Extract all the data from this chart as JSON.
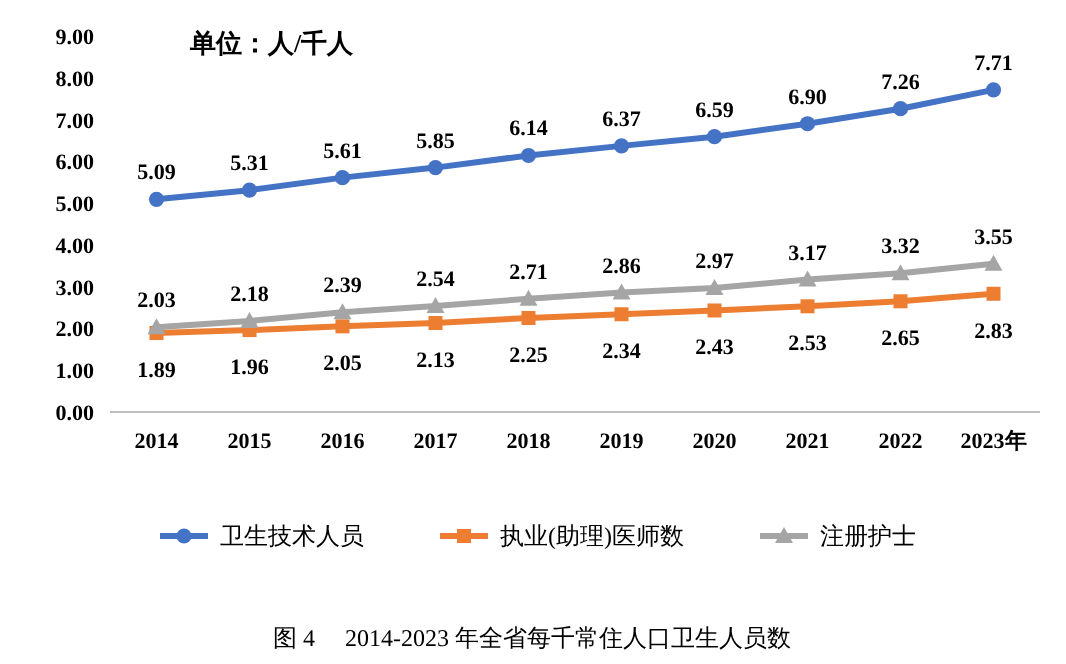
{
  "chart_data": {
    "type": "line",
    "categories": [
      "2014",
      "2015",
      "2016",
      "2017",
      "2018",
      "2019",
      "2020",
      "2021",
      "2022",
      "2023年"
    ],
    "series": [
      {
        "name": "卫生技术人员",
        "color": "#4472c4",
        "marker": "circle",
        "values": [
          5.09,
          5.31,
          5.61,
          5.85,
          6.14,
          6.37,
          6.59,
          6.9,
          7.26,
          7.71
        ],
        "value_labels": [
          "5.09",
          "5.31",
          "5.61",
          "5.85",
          "6.14",
          "6.37",
          "6.59",
          "6.90",
          "7.26",
          "7.71"
        ]
      },
      {
        "name": "执业(助理)医师数",
        "color": "#ed7d31",
        "marker": "square",
        "values": [
          1.89,
          1.96,
          2.05,
          2.13,
          2.25,
          2.34,
          2.43,
          2.53,
          2.65,
          2.83
        ],
        "value_labels": [
          "1.89",
          "1.96",
          "2.05",
          "2.13",
          "2.25",
          "2.34",
          "2.43",
          "2.53",
          "2.65",
          "2.83"
        ]
      },
      {
        "name": "注册护士",
        "color": "#a5a5a5",
        "marker": "triangle",
        "values": [
          2.03,
          2.18,
          2.39,
          2.54,
          2.71,
          2.86,
          2.97,
          3.17,
          3.32,
          3.55
        ],
        "value_labels": [
          "2.03",
          "2.18",
          "2.39",
          "2.54",
          "2.71",
          "2.86",
          "2.97",
          "3.17",
          "3.32",
          "3.55"
        ]
      }
    ],
    "ylim": [
      0,
      9
    ],
    "yticks": [
      {
        "value": 0,
        "label": "0.00"
      },
      {
        "value": 1,
        "label": "1.00"
      },
      {
        "value": 2,
        "label": "2.00"
      },
      {
        "value": 3,
        "label": "3.00"
      },
      {
        "value": 4,
        "label": "4.00"
      },
      {
        "value": 5,
        "label": "5.00"
      },
      {
        "value": 6,
        "label": "6.00"
      },
      {
        "value": 7,
        "label": "7.00"
      },
      {
        "value": 8,
        "label": "8.00"
      },
      {
        "value": 9,
        "label": "9.00"
      }
    ],
    "grid": false,
    "legend": "bottom",
    "annotations": [
      "单位：人/千人",
      "图 4     2014-2023 年全省每千常住人口卫生人员数"
    ]
  }
}
